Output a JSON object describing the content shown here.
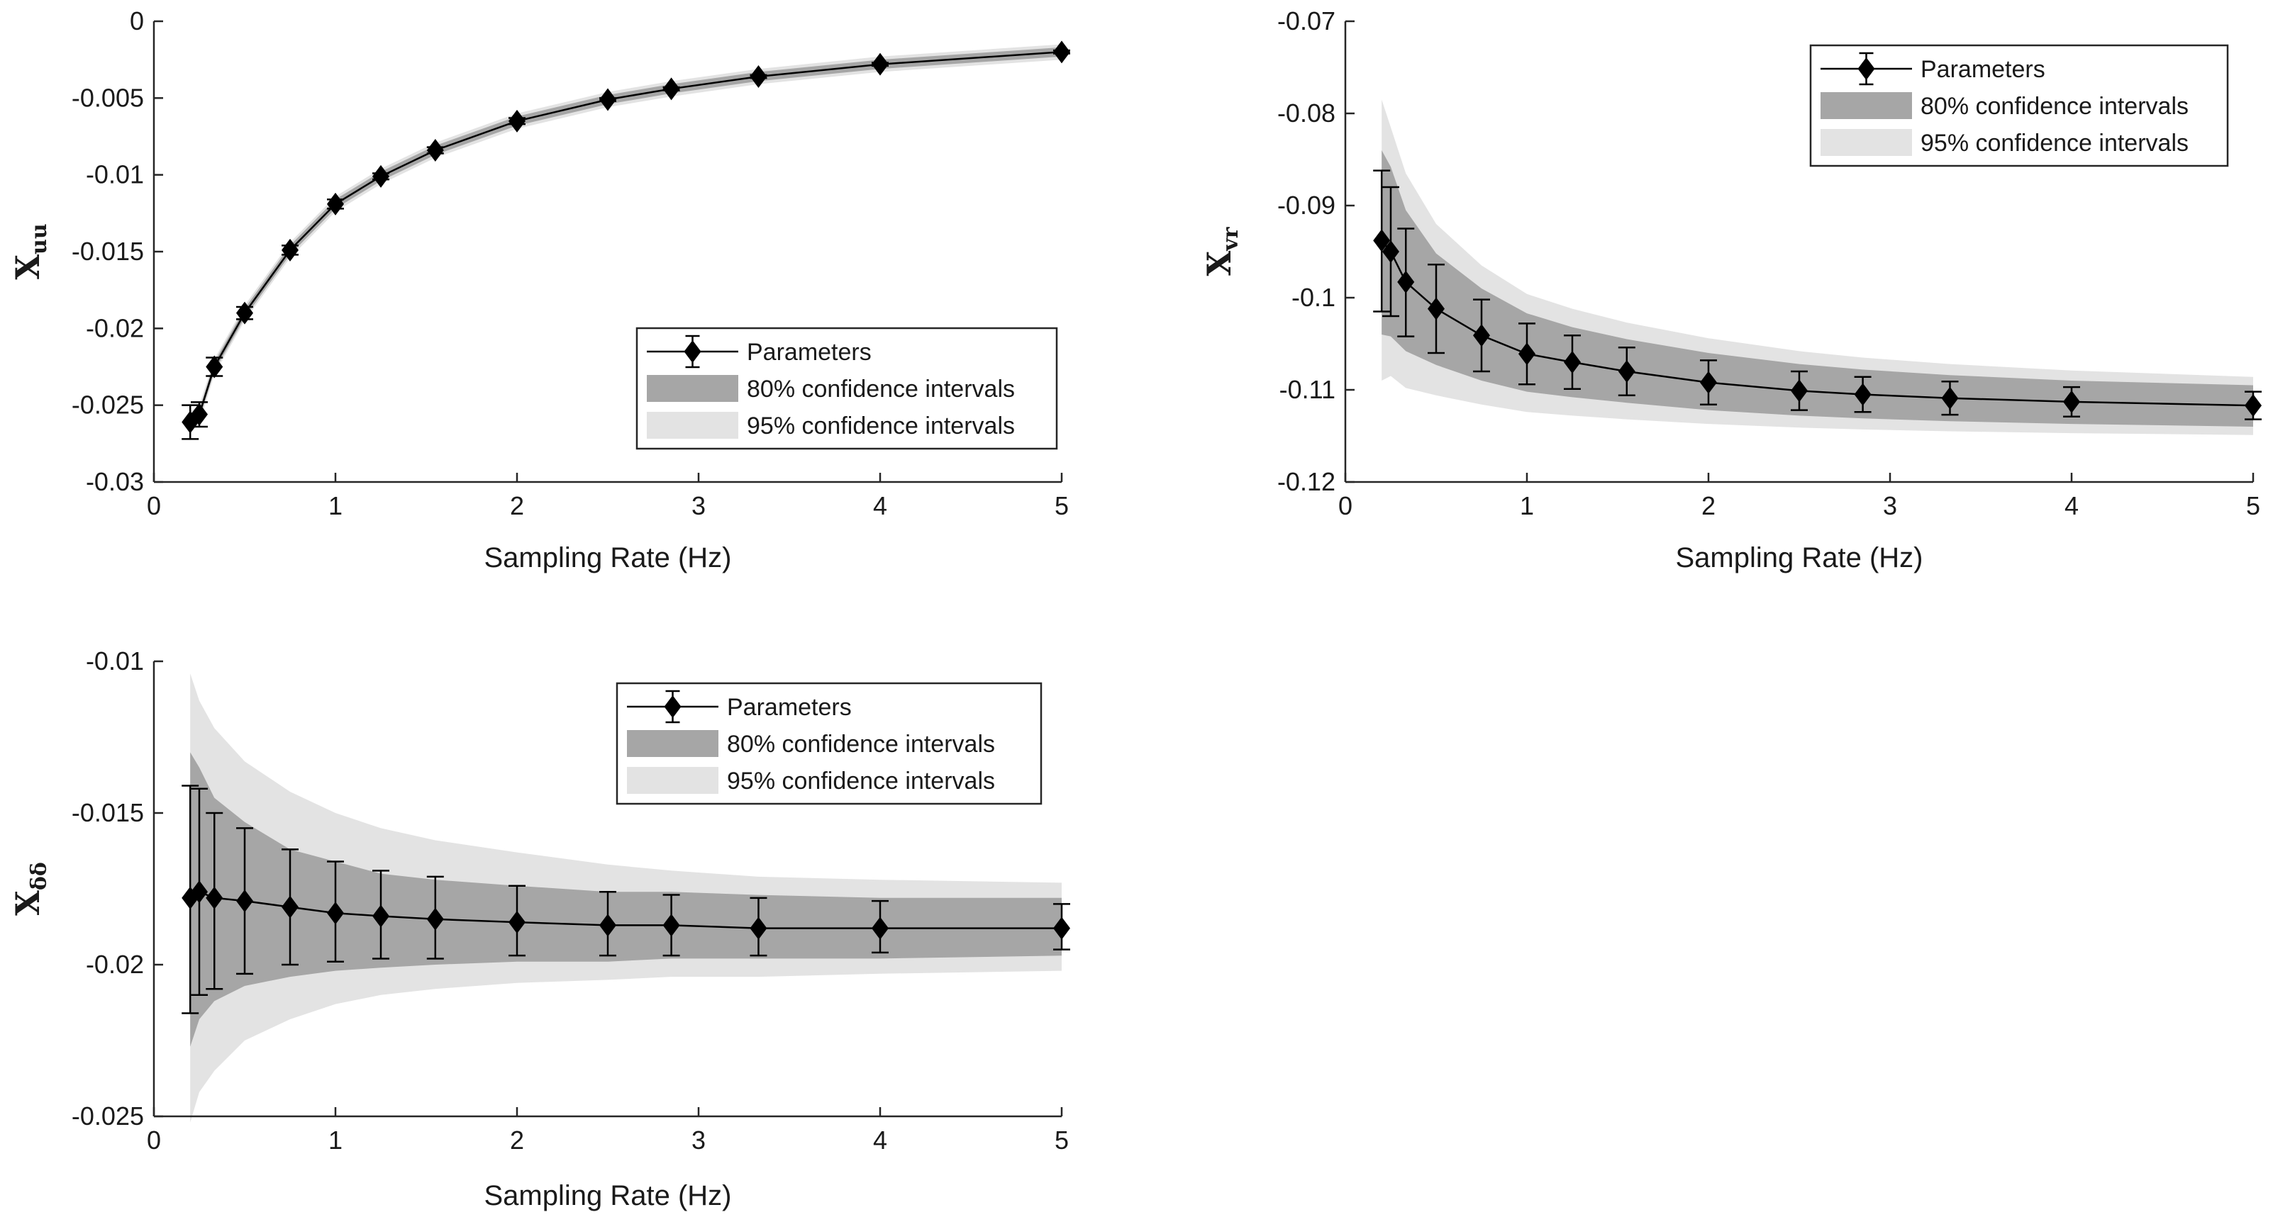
{
  "chart_data": [
    {
      "type": "line",
      "xlabel": "Sampling Rate (Hz)",
      "ylabel": "X",
      "ylabel_sub": "uu",
      "xlim": [
        0,
        5
      ],
      "ylim": [
        -0.03,
        0
      ],
      "xticks": [
        0,
        1,
        2,
        3,
        4,
        5
      ],
      "xtick_labels": [
        "0",
        "1",
        "2",
        "3",
        "4",
        "5"
      ],
      "yticks": [
        0,
        -0.005,
        -0.01,
        -0.015,
        -0.02,
        -0.025,
        -0.03
      ],
      "ytick_labels": [
        "0",
        "-0.005",
        "-0.01",
        "-0.015",
        "-0.02",
        "-0.025",
        "-0.03"
      ],
      "grid": false,
      "legend_position": "lower-right",
      "legend": [
        "Parameters",
        "80% confidence intervals",
        "95% confidence intervals"
      ],
      "x": [
        0.2,
        0.25,
        0.333,
        0.5,
        0.75,
        1.0,
        1.25,
        1.55,
        2.0,
        2.5,
        2.85,
        3.33,
        4.0,
        5.0
      ],
      "series": [
        {
          "name": "Parameters",
          "values": [
            -0.0261,
            -0.0256,
            -0.0225,
            -0.019,
            -0.0149,
            -0.0119,
            -0.0101,
            -0.0084,
            -0.0065,
            -0.0051,
            -0.0044,
            -0.0036,
            -0.0028,
            -0.002
          ],
          "err_low": [
            -0.0272,
            -0.0264,
            -0.0231,
            -0.0194,
            -0.0152,
            -0.0122,
            -0.0103,
            -0.0086,
            -0.0067,
            -0.0052,
            -0.0045,
            -0.0037,
            -0.0029,
            -0.0021
          ],
          "err_high": [
            -0.025,
            -0.0248,
            -0.0219,
            -0.0186,
            -0.0146,
            -0.0116,
            -0.0099,
            -0.0082,
            -0.0063,
            -0.005,
            -0.0043,
            -0.0035,
            -0.0027,
            -0.0019
          ]
        },
        {
          "name": "80% confidence intervals",
          "lower": [
            -0.0265,
            -0.0259,
            -0.0228,
            -0.0193,
            -0.0152,
            -0.0122,
            -0.0104,
            -0.0087,
            -0.0068,
            -0.0054,
            -0.0047,
            -0.0039,
            -0.0031,
            -0.0023
          ],
          "upper": [
            -0.0257,
            -0.0253,
            -0.0222,
            -0.0187,
            -0.0146,
            -0.0116,
            -0.0098,
            -0.0081,
            -0.0062,
            -0.0048,
            -0.0041,
            -0.0033,
            -0.0025,
            -0.0017
          ]
        },
        {
          "name": "95% confidence intervals",
          "lower": [
            -0.0268,
            -0.0262,
            -0.023,
            -0.0195,
            -0.0154,
            -0.0124,
            -0.0106,
            -0.0089,
            -0.007,
            -0.0056,
            -0.0049,
            -0.0041,
            -0.0033,
            -0.0025
          ],
          "upper": [
            -0.0254,
            -0.025,
            -0.022,
            -0.0185,
            -0.0144,
            -0.0114,
            -0.0096,
            -0.0079,
            -0.006,
            -0.0046,
            -0.0039,
            -0.0031,
            -0.0023,
            -0.0015
          ]
        }
      ]
    },
    {
      "type": "line",
      "xlabel": "Sampling Rate (Hz)",
      "ylabel": "X",
      "ylabel_sub": "vr",
      "xlim": [
        0,
        5
      ],
      "ylim": [
        -0.12,
        -0.07
      ],
      "xticks": [
        0,
        1,
        2,
        3,
        4,
        5
      ],
      "xtick_labels": [
        "0",
        "1",
        "2",
        "3",
        "4",
        "5"
      ],
      "yticks": [
        -0.07,
        -0.08,
        -0.09,
        -0.1,
        -0.11,
        -0.12
      ],
      "ytick_labels": [
        "-0.07",
        "-0.08",
        "-0.09",
        "-0.1",
        "-0.11",
        "-0.12"
      ],
      "grid": false,
      "legend_position": "top-right",
      "legend": [
        "Parameters",
        "80% confidence intervals",
        "95% confidence intervals"
      ],
      "x": [
        0.2,
        0.25,
        0.333,
        0.5,
        0.75,
        1.0,
        1.25,
        1.55,
        2.0,
        2.5,
        2.85,
        3.33,
        4.0,
        5.0
      ],
      "series": [
        {
          "name": "Parameters",
          "values": [
            -0.0938,
            -0.095,
            -0.0983,
            -0.1012,
            -0.1041,
            -0.1061,
            -0.107,
            -0.108,
            -0.1092,
            -0.1101,
            -0.1105,
            -0.1109,
            -0.1113,
            -0.1117
          ],
          "err_low": [
            -0.1015,
            -0.102,
            -0.1042,
            -0.106,
            -0.108,
            -0.1094,
            -0.1099,
            -0.1106,
            -0.1116,
            -0.1122,
            -0.1124,
            -0.1127,
            -0.1129,
            -0.1132
          ],
          "err_high": [
            -0.0862,
            -0.088,
            -0.0925,
            -0.0964,
            -0.1002,
            -0.1028,
            -0.1041,
            -0.1054,
            -0.1068,
            -0.108,
            -0.1086,
            -0.1091,
            -0.1097,
            -0.1102
          ]
        },
        {
          "name": "80% confidence intervals",
          "lower": [
            -0.104,
            -0.1042,
            -0.1058,
            -0.1073,
            -0.109,
            -0.1102,
            -0.1108,
            -0.1114,
            -0.1122,
            -0.1128,
            -0.1131,
            -0.1134,
            -0.1137,
            -0.114
          ],
          "upper": [
            -0.084,
            -0.0858,
            -0.0905,
            -0.0952,
            -0.099,
            -0.1017,
            -0.1032,
            -0.1045,
            -0.106,
            -0.1072,
            -0.1078,
            -0.1084,
            -0.109,
            -0.1095
          ]
        },
        {
          "name": "95% confidence intervals",
          "lower": [
            -0.109,
            -0.1085,
            -0.1098,
            -0.1106,
            -0.1116,
            -0.1124,
            -0.1128,
            -0.1132,
            -0.1137,
            -0.1141,
            -0.1143,
            -0.1145,
            -0.1147,
            -0.1149
          ],
          "upper": [
            -0.0785,
            -0.0815,
            -0.0865,
            -0.092,
            -0.0965,
            -0.0996,
            -0.1012,
            -0.1027,
            -0.1044,
            -0.1058,
            -0.1065,
            -0.1072,
            -0.1079,
            -0.1086
          ]
        }
      ]
    },
    {
      "type": "line",
      "xlabel": "Sampling Rate (Hz)",
      "ylabel": "X",
      "ylabel_sub": "δδ",
      "xlim": [
        0,
        5
      ],
      "ylim": [
        -0.025,
        -0.01
      ],
      "xticks": [
        0,
        1,
        2,
        3,
        4,
        5
      ],
      "xtick_labels": [
        "0",
        "1",
        "2",
        "3",
        "4",
        "5"
      ],
      "yticks": [
        -0.01,
        -0.015,
        -0.02,
        -0.025
      ],
      "ytick_labels": [
        "-0.01",
        "-0.015",
        "-0.02",
        "-0.025"
      ],
      "grid": false,
      "legend_position": "top-right",
      "legend": [
        "Parameters",
        "80% confidence intervals",
        "95% confidence intervals"
      ],
      "x": [
        0.2,
        0.25,
        0.333,
        0.5,
        0.75,
        1.0,
        1.25,
        1.55,
        2.0,
        2.5,
        2.85,
        3.33,
        4.0,
        5.0
      ],
      "series": [
        {
          "name": "Parameters",
          "values": [
            -0.0178,
            -0.0176,
            -0.0178,
            -0.0179,
            -0.0181,
            -0.0183,
            -0.0184,
            -0.0185,
            -0.0186,
            -0.0187,
            -0.0187,
            -0.0188,
            -0.0188,
            -0.0188
          ],
          "err_low": [
            -0.0216,
            -0.021,
            -0.0208,
            -0.0203,
            -0.02,
            -0.0199,
            -0.0198,
            -0.0198,
            -0.0197,
            -0.0197,
            -0.0197,
            -0.0197,
            -0.0196,
            -0.0195
          ],
          "err_high": [
            -0.0141,
            -0.0142,
            -0.015,
            -0.0155,
            -0.0162,
            -0.0166,
            -0.0169,
            -0.0171,
            -0.0174,
            -0.0176,
            -0.0177,
            -0.0178,
            -0.0179,
            -0.018
          ]
        },
        {
          "name": "80% confidence intervals",
          "lower": [
            -0.0227,
            -0.0218,
            -0.0212,
            -0.0207,
            -0.0204,
            -0.0202,
            -0.0201,
            -0.02,
            -0.0199,
            -0.0199,
            -0.0198,
            -0.0198,
            -0.0198,
            -0.0197
          ],
          "upper": [
            -0.013,
            -0.0135,
            -0.0145,
            -0.0153,
            -0.0162,
            -0.0166,
            -0.017,
            -0.0172,
            -0.0174,
            -0.0176,
            -0.0176,
            -0.0177,
            -0.0178,
            -0.0178
          ]
        },
        {
          "name": "95% confidence intervals",
          "lower": [
            -0.0252,
            -0.0242,
            -0.0235,
            -0.0225,
            -0.0218,
            -0.0213,
            -0.021,
            -0.0208,
            -0.0206,
            -0.0205,
            -0.0204,
            -0.0204,
            -0.0203,
            -0.0202
          ],
          "upper": [
            -0.0104,
            -0.0113,
            -0.0122,
            -0.0133,
            -0.0143,
            -0.015,
            -0.0155,
            -0.0159,
            -0.0163,
            -0.0167,
            -0.0169,
            -0.0171,
            -0.0172,
            -0.0173
          ]
        }
      ]
    }
  ],
  "colors": {
    "ci80": "#a6a6a6",
    "ci95": "#e3e3e3",
    "line": "#000000",
    "axis": "#262626"
  }
}
